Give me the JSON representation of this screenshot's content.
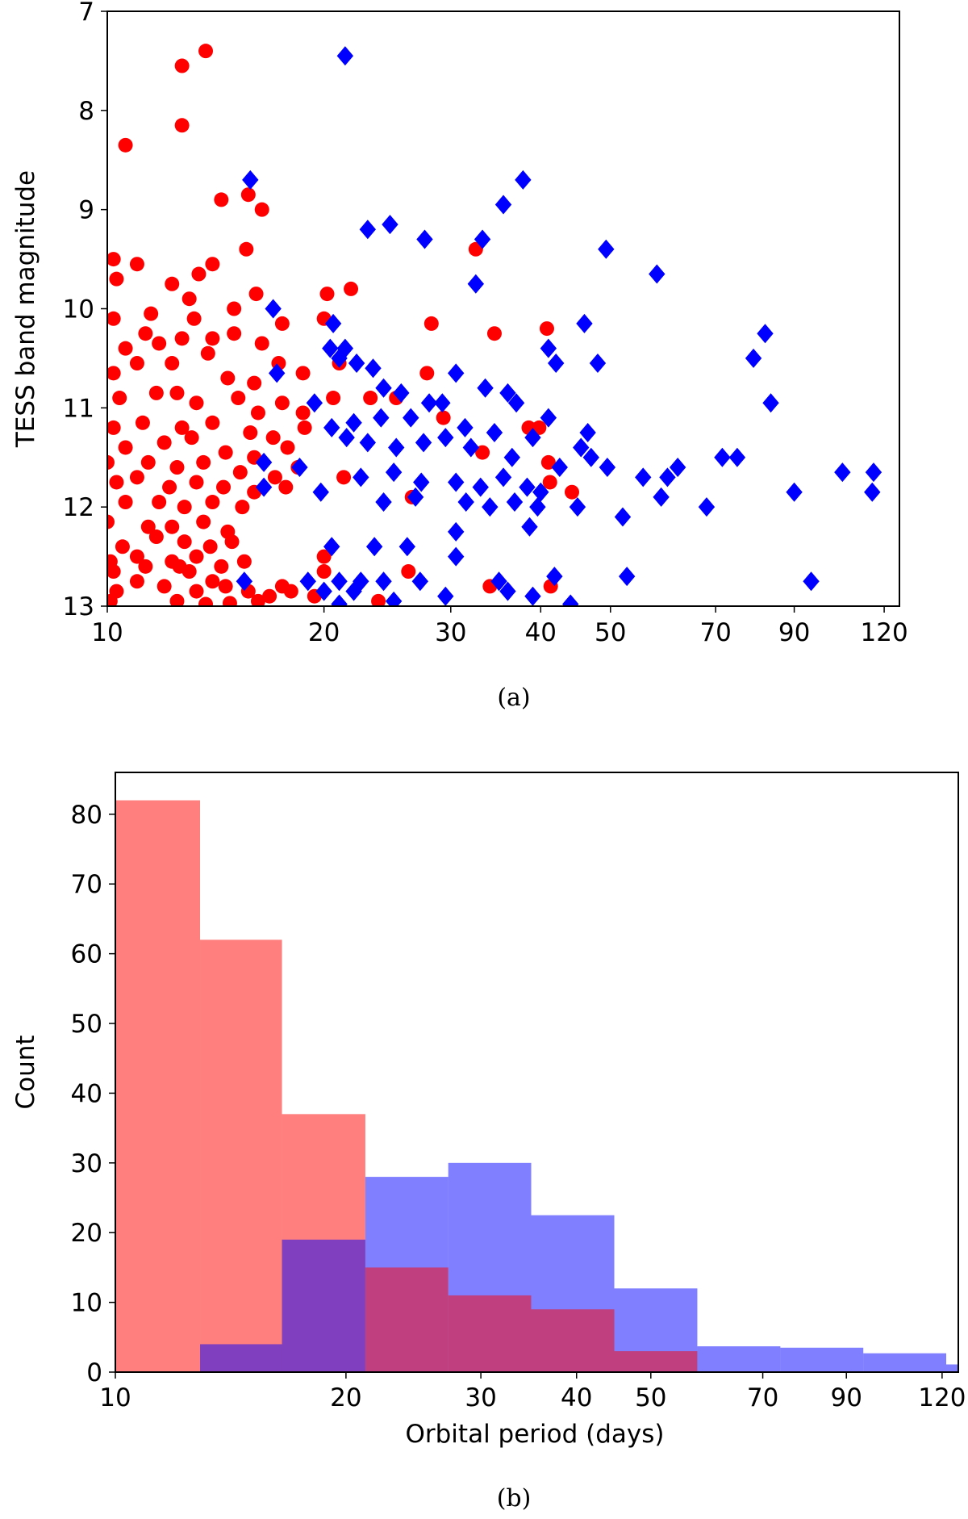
{
  "chart_data": [
    {
      "type": "scatter",
      "caption": "(a)",
      "title": "",
      "xlabel": "",
      "ylabel": "TESS band magnitude",
      "xscale": "log",
      "xlim": [
        10,
        126
      ],
      "ylim": [
        13,
        7
      ],
      "y_inverted": true,
      "xticks": [
        "10",
        "20",
        "30",
        "40",
        "50",
        "70",
        "90",
        "120"
      ],
      "xtick_values": [
        10,
        20,
        30,
        40,
        50,
        70,
        90,
        120
      ],
      "yticks": [
        "7",
        "8",
        "9",
        "10",
        "11",
        "12",
        "13"
      ],
      "ytick_values": [
        7,
        8,
        9,
        10,
        11,
        12,
        13
      ],
      "grid": false,
      "series": [
        {
          "marker": "circle",
          "color": "#ff0000",
          "points": [
            [
              12.7,
              7.55
            ],
            [
              13.7,
              7.4
            ],
            [
              10.6,
              8.35
            ],
            [
              12.7,
              8.15
            ],
            [
              14.4,
              8.9
            ],
            [
              15.7,
              8.85
            ],
            [
              16.4,
              9.0
            ],
            [
              15.6,
              9.4
            ],
            [
              32.5,
              9.4
            ],
            [
              10.2,
              9.5
            ],
            [
              11.0,
              9.55
            ],
            [
              10.3,
              9.7
            ],
            [
              13.4,
              9.65
            ],
            [
              12.3,
              9.75
            ],
            [
              14.0,
              9.55
            ],
            [
              13.0,
              9.9
            ],
            [
              11.5,
              10.05
            ],
            [
              15.0,
              10.0
            ],
            [
              16.1,
              9.85
            ],
            [
              20.2,
              9.85
            ],
            [
              21.8,
              9.8
            ],
            [
              10.2,
              10.1
            ],
            [
              11.3,
              10.25
            ],
            [
              12.7,
              10.3
            ],
            [
              10.6,
              10.4
            ],
            [
              11.8,
              10.35
            ],
            [
              13.2,
              10.1
            ],
            [
              14.0,
              10.3
            ],
            [
              15.0,
              10.25
            ],
            [
              16.4,
              10.35
            ],
            [
              17.5,
              10.15
            ],
            [
              20.0,
              10.1
            ],
            [
              13.8,
              10.45
            ],
            [
              11.0,
              10.55
            ],
            [
              10.2,
              10.65
            ],
            [
              12.3,
              10.55
            ],
            [
              14.7,
              10.7
            ],
            [
              16.0,
              10.75
            ],
            [
              17.3,
              10.55
            ],
            [
              18.7,
              10.65
            ],
            [
              21.0,
              10.55
            ],
            [
              28.2,
              10.15
            ],
            [
              34.5,
              10.25
            ],
            [
              40.8,
              10.2
            ],
            [
              10.4,
              10.9
            ],
            [
              11.7,
              10.85
            ],
            [
              13.3,
              10.95
            ],
            [
              12.5,
              10.85
            ],
            [
              15.2,
              10.9
            ],
            [
              16.2,
              11.05
            ],
            [
              17.5,
              10.95
            ],
            [
              18.7,
              11.05
            ],
            [
              20.6,
              10.9
            ],
            [
              23.2,
              10.9
            ],
            [
              25.2,
              10.9
            ],
            [
              27.8,
              10.65
            ],
            [
              38.5,
              11.2
            ],
            [
              39.8,
              11.2
            ],
            [
              29.3,
              11.1
            ],
            [
              10.2,
              11.2
            ],
            [
              11.2,
              11.15
            ],
            [
              12.7,
              11.2
            ],
            [
              14.0,
              11.15
            ],
            [
              15.8,
              11.25
            ],
            [
              17.0,
              11.3
            ],
            [
              18.8,
              11.2
            ],
            [
              10.6,
              11.4
            ],
            [
              12.0,
              11.35
            ],
            [
              13.1,
              11.3
            ],
            [
              14.6,
              11.45
            ],
            [
              16.0,
              11.5
            ],
            [
              17.8,
              11.4
            ],
            [
              10.0,
              11.55
            ],
            [
              11.4,
              11.55
            ],
            [
              12.5,
              11.6
            ],
            [
              13.6,
              11.55
            ],
            [
              15.3,
              11.65
            ],
            [
              17.1,
              11.7
            ],
            [
              18.4,
              11.6
            ],
            [
              33.2,
              11.45
            ],
            [
              10.3,
              11.75
            ],
            [
              11.0,
              11.7
            ],
            [
              12.2,
              11.8
            ],
            [
              13.3,
              11.75
            ],
            [
              14.5,
              11.8
            ],
            [
              16.0,
              11.85
            ],
            [
              17.7,
              11.8
            ],
            [
              21.3,
              11.7
            ],
            [
              41.0,
              11.55
            ],
            [
              41.2,
              11.75
            ],
            [
              44.2,
              11.85
            ],
            [
              26.5,
              11.9
            ],
            [
              10.6,
              11.95
            ],
            [
              11.8,
              11.95
            ],
            [
              12.8,
              12.0
            ],
            [
              14.0,
              11.95
            ],
            [
              15.4,
              12.0
            ],
            [
              10.0,
              12.15
            ],
            [
              11.4,
              12.2
            ],
            [
              12.3,
              12.2
            ],
            [
              13.6,
              12.15
            ],
            [
              14.7,
              12.25
            ],
            [
              10.5,
              12.4
            ],
            [
              11.7,
              12.3
            ],
            [
              12.8,
              12.35
            ],
            [
              13.9,
              12.4
            ],
            [
              14.9,
              12.35
            ],
            [
              10.1,
              12.55
            ],
            [
              11.0,
              12.5
            ],
            [
              12.3,
              12.55
            ],
            [
              13.3,
              12.5
            ],
            [
              14.4,
              12.6
            ],
            [
              15.5,
              12.55
            ],
            [
              10.2,
              12.65
            ],
            [
              11.3,
              12.6
            ],
            [
              12.6,
              12.6
            ],
            [
              13.0,
              12.65
            ],
            [
              14.0,
              12.75
            ],
            [
              20.0,
              12.5
            ],
            [
              20.0,
              12.65
            ],
            [
              26.2,
              12.65
            ],
            [
              10.3,
              12.85
            ],
            [
              11.0,
              12.75
            ],
            [
              12.0,
              12.8
            ],
            [
              13.3,
              12.85
            ],
            [
              14.6,
              12.8
            ],
            [
              15.7,
              12.85
            ],
            [
              16.8,
              12.9
            ],
            [
              18.0,
              12.85
            ],
            [
              19.4,
              12.9
            ],
            [
              23.8,
              12.95
            ],
            [
              10.1,
              12.95
            ],
            [
              12.5,
              12.95
            ],
            [
              13.7,
              12.98
            ],
            [
              14.8,
              12.97
            ],
            [
              16.2,
              12.95
            ],
            [
              34.0,
              12.8
            ],
            [
              41.3,
              12.8
            ],
            [
              17.5,
              12.8
            ]
          ]
        },
        {
          "marker": "diamond",
          "color": "#0000ff",
          "points": [
            [
              21.4,
              7.45
            ],
            [
              15.8,
              8.7
            ],
            [
              37.8,
              8.7
            ],
            [
              35.5,
              8.95
            ],
            [
              23.0,
              9.2
            ],
            [
              24.7,
              9.15
            ],
            [
              27.6,
              9.3
            ],
            [
              33.2,
              9.3
            ],
            [
              49.3,
              9.4
            ],
            [
              58.0,
              9.65
            ],
            [
              32.5,
              9.75
            ],
            [
              17.0,
              10.0
            ],
            [
              20.6,
              10.15
            ],
            [
              46.0,
              10.15
            ],
            [
              41.0,
              10.4
            ],
            [
              82.0,
              10.25
            ],
            [
              20.4,
              10.4
            ],
            [
              21.4,
              10.4
            ],
            [
              21.0,
              10.5
            ],
            [
              22.2,
              10.55
            ],
            [
              23.4,
              10.6
            ],
            [
              42.0,
              10.55
            ],
            [
              48.0,
              10.55
            ],
            [
              79.0,
              10.5
            ],
            [
              30.5,
              10.65
            ],
            [
              33.5,
              10.8
            ],
            [
              36.0,
              10.85
            ],
            [
              28.0,
              10.95
            ],
            [
              29.2,
              10.95
            ],
            [
              37.0,
              10.95
            ],
            [
              25.6,
              10.85
            ],
            [
              24.2,
              10.8
            ],
            [
              17.2,
              10.65
            ],
            [
              19.4,
              10.95
            ],
            [
              26.4,
              11.1
            ],
            [
              24.0,
              11.1
            ],
            [
              22.0,
              11.15
            ],
            [
              31.4,
              11.2
            ],
            [
              34.5,
              11.25
            ],
            [
              39.0,
              11.3
            ],
            [
              41.0,
              11.1
            ],
            [
              46.5,
              11.25
            ],
            [
              83.5,
              10.95
            ],
            [
              20.5,
              11.2
            ],
            [
              21.5,
              11.3
            ],
            [
              23.0,
              11.35
            ],
            [
              25.2,
              11.4
            ],
            [
              27.5,
              11.35
            ],
            [
              29.5,
              11.3
            ],
            [
              32.0,
              11.4
            ],
            [
              36.5,
              11.5
            ],
            [
              45.5,
              11.4
            ],
            [
              47.0,
              11.5
            ],
            [
              42.5,
              11.6
            ],
            [
              49.5,
              11.6
            ],
            [
              71.5,
              11.5
            ],
            [
              75.0,
              11.5
            ],
            [
              16.5,
              11.55
            ],
            [
              18.5,
              11.6
            ],
            [
              22.5,
              11.7
            ],
            [
              25.0,
              11.65
            ],
            [
              27.3,
              11.75
            ],
            [
              30.5,
              11.75
            ],
            [
              33.0,
              11.8
            ],
            [
              35.5,
              11.7
            ],
            [
              38.3,
              11.8
            ],
            [
              40.0,
              11.85
            ],
            [
              55.5,
              11.7
            ],
            [
              60.0,
              11.7
            ],
            [
              62.0,
              11.6
            ],
            [
              105.0,
              11.65
            ],
            [
              116.0,
              11.65
            ],
            [
              16.5,
              11.8
            ],
            [
              19.8,
              11.85
            ],
            [
              24.2,
              11.95
            ],
            [
              26.8,
              11.9
            ],
            [
              31.5,
              11.95
            ],
            [
              34.0,
              12.0
            ],
            [
              36.8,
              11.95
            ],
            [
              39.6,
              12.0
            ],
            [
              45.0,
              12.0
            ],
            [
              58.8,
              11.9
            ],
            [
              68.0,
              12.0
            ],
            [
              90.0,
              11.85
            ],
            [
              115.5,
              11.85
            ],
            [
              30.5,
              12.25
            ],
            [
              38.6,
              12.2
            ],
            [
              52.0,
              12.1
            ],
            [
              20.5,
              12.4
            ],
            [
              23.5,
              12.4
            ],
            [
              26.1,
              12.4
            ],
            [
              30.5,
              12.5
            ],
            [
              15.5,
              12.75
            ],
            [
              19.0,
              12.75
            ],
            [
              21.0,
              12.75
            ],
            [
              22.5,
              12.75
            ],
            [
              24.2,
              12.75
            ],
            [
              27.2,
              12.75
            ],
            [
              35.0,
              12.75
            ],
            [
              41.8,
              12.7
            ],
            [
              52.7,
              12.7
            ],
            [
              95.0,
              12.75
            ],
            [
              20.0,
              12.85
            ],
            [
              22.0,
              12.85
            ],
            [
              25.0,
              12.95
            ],
            [
              29.5,
              12.9
            ],
            [
              36.0,
              12.85
            ],
            [
              39.0,
              12.9
            ],
            [
              44.0,
              12.98
            ],
            [
              21.0,
              12.98
            ]
          ]
        }
      ]
    },
    {
      "type": "bar",
      "caption": "(b)",
      "title": "",
      "xlabel": "Orbital period (days)",
      "ylabel": "Count",
      "xscale": "log",
      "xlim": [
        10,
        126
      ],
      "ylim": [
        0,
        86
      ],
      "xticks": [
        "10",
        "20",
        "30",
        "40",
        "50",
        "70",
        "90",
        "120"
      ],
      "xtick_values": [
        10,
        20,
        30,
        40,
        50,
        70,
        90,
        120
      ],
      "yticks": [
        "0",
        "10",
        "20",
        "30",
        "40",
        "50",
        "60",
        "70",
        "80"
      ],
      "ytick_values": [
        0,
        10,
        20,
        30,
        40,
        50,
        60,
        70,
        80
      ],
      "grid": false,
      "bin_edges": [
        10,
        12.9,
        16.5,
        21.2,
        27.2,
        34.9,
        44.8,
        57.5,
        73.8,
        94.7,
        121.5,
        126
      ],
      "series": [
        {
          "color": "#ff0000",
          "opacity": 0.5,
          "values": [
            82,
            62,
            37
          ]
        },
        {
          "color": "#0000ff",
          "opacity": 0.5,
          "values": [
            0,
            4,
            19,
            28,
            30,
            22.5,
            12,
            3.7,
            3.5,
            2.7,
            1.1
          ]
        },
        {
          "color": "#ff0000",
          "opacity": 0.5,
          "values": [
            0,
            0,
            0,
            15,
            11,
            9,
            3,
            0,
            0,
            0,
            0
          ]
        }
      ]
    }
  ]
}
